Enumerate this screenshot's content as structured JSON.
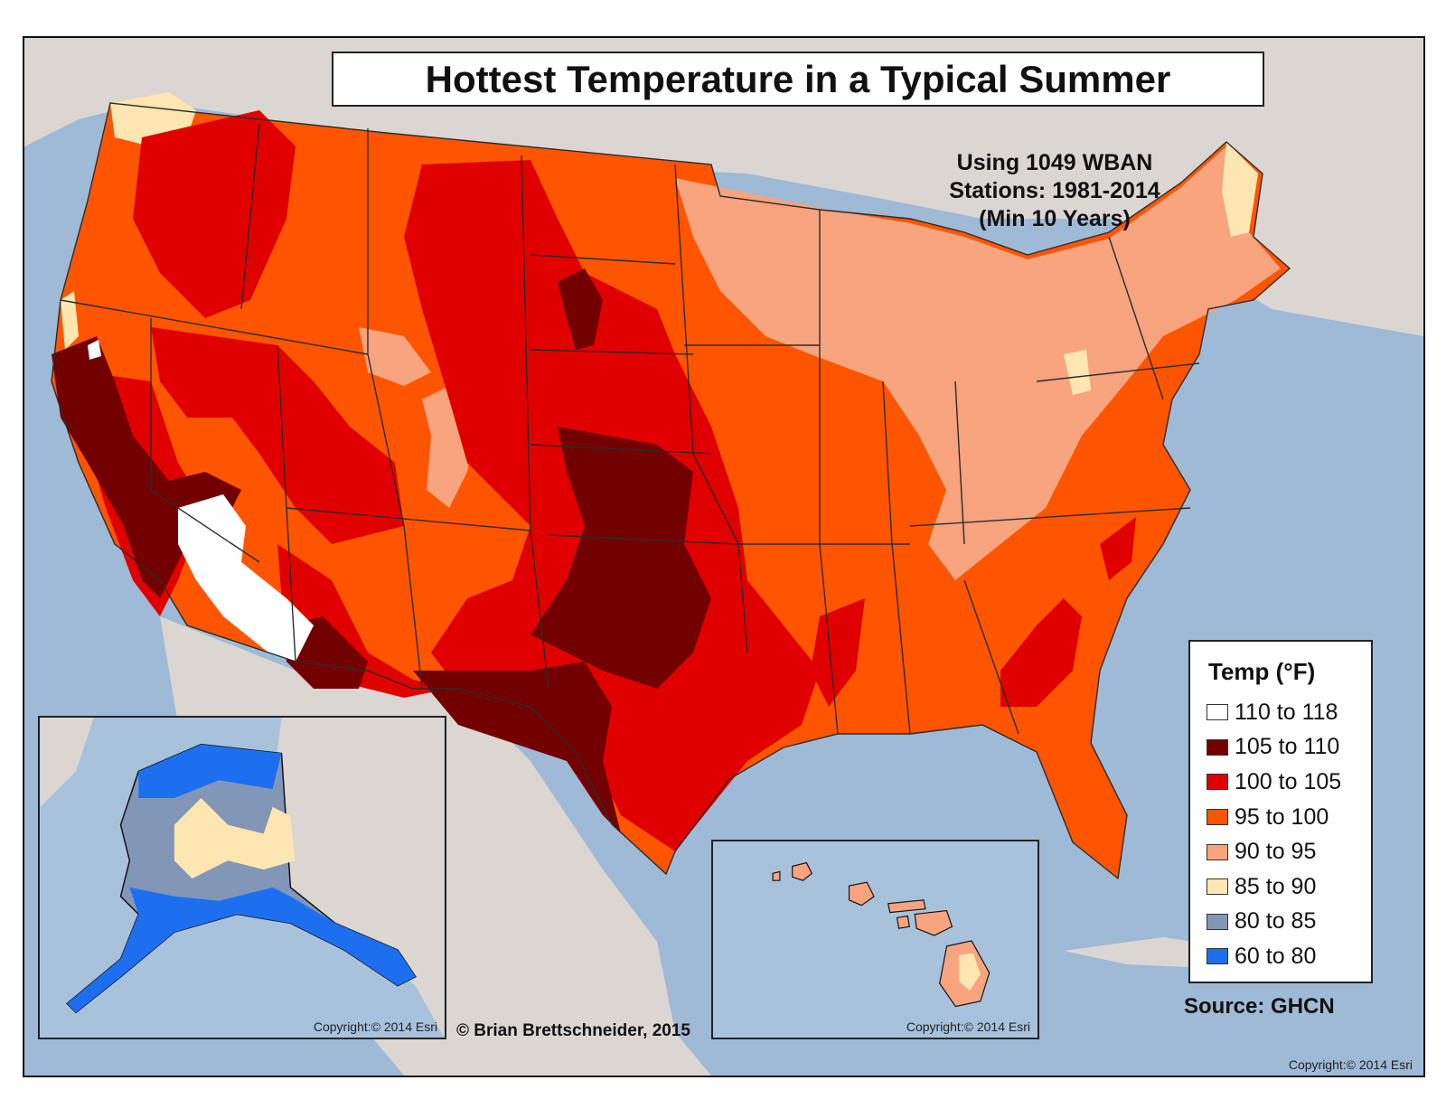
{
  "title": "Hottest Temperature in a Typical Summer",
  "subtitle": [
    "Using 1049 WBAN",
    "Stations: 1981-2014",
    "(Min 10 Years)"
  ],
  "legend": {
    "title": "Temp (°F)",
    "items": [
      {
        "label": "110 to 118",
        "color": "#ffffff"
      },
      {
        "label": "105 to 110",
        "color": "#730000"
      },
      {
        "label": "100 to 105",
        "color": "#e00000"
      },
      {
        "label": "95 to 100",
        "color": "#ff5500"
      },
      {
        "label": "90 to 95",
        "color": "#f7a47f"
      },
      {
        "label": "85 to 90",
        "color": "#fde6b2"
      },
      {
        "label": "80 to 85",
        "color": "#8297b7"
      },
      {
        "label": "60 to 80",
        "color": "#1e6ff0"
      }
    ]
  },
  "credits": {
    "author": "© Brian Brettschneider, 2015",
    "source": "Source: GHCN",
    "copyright_alaska": "Copyright:© 2014 Esri",
    "copyright_hawaii": "Copyright:© 2014 Esri",
    "copyright_main": "Copyright:© 2014 Esri"
  },
  "colors": {
    "water": "#9fbad6",
    "land_background": "#dcd6d3",
    "state_border": "#2b2b2b"
  }
}
